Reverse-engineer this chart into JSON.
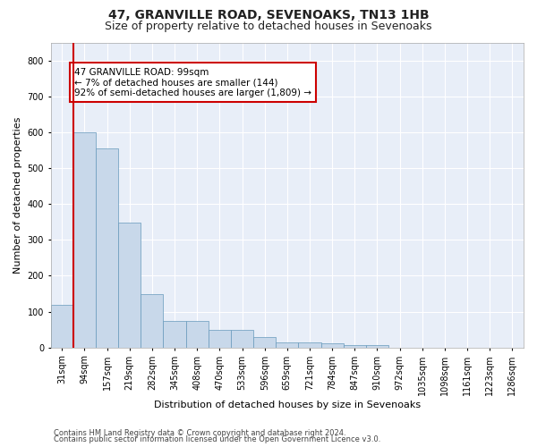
{
  "title": "47, GRANVILLE ROAD, SEVENOAKS, TN13 1HB",
  "subtitle": "Size of property relative to detached houses in Sevenoaks",
  "xlabel": "Distribution of detached houses by size in Sevenoaks",
  "ylabel": "Number of detached properties",
  "bin_labels": [
    "31sqm",
    "94sqm",
    "157sqm",
    "219sqm",
    "282sqm",
    "345sqm",
    "408sqm",
    "470sqm",
    "533sqm",
    "596sqm",
    "659sqm",
    "721sqm",
    "784sqm",
    "847sqm",
    "910sqm",
    "972sqm",
    "1035sqm",
    "1098sqm",
    "1161sqm",
    "1223sqm",
    "1286sqm"
  ],
  "bar_values": [
    120,
    600,
    555,
    348,
    150,
    75,
    75,
    50,
    50,
    30,
    15,
    15,
    12,
    8,
    8,
    0,
    0,
    0,
    0,
    0,
    0
  ],
  "bar_color": "#c8d8ea",
  "bar_edge_color": "#6699bb",
  "property_line_color": "#cc0000",
  "annotation_text": "47 GRANVILLE ROAD: 99sqm\n← 7% of detached houses are smaller (144)\n92% of semi-detached houses are larger (1,809) →",
  "annotation_box_color": "#ffffff",
  "annotation_box_edge": "#cc0000",
  "footer1": "Contains HM Land Registry data © Crown copyright and database right 2024.",
  "footer2": "Contains public sector information licensed under the Open Government Licence v3.0.",
  "ylim": [
    0,
    850
  ],
  "yticks": [
    0,
    100,
    200,
    300,
    400,
    500,
    600,
    700,
    800
  ],
  "fig_bg_color": "#ffffff",
  "plot_bg_color": "#e8eef8",
  "grid_color": "#ffffff",
  "title_fontsize": 10,
  "subtitle_fontsize": 9,
  "axis_label_fontsize": 8,
  "tick_fontsize": 7
}
